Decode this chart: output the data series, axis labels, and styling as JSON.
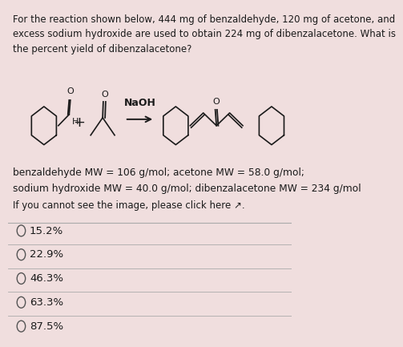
{
  "bg_color": "#f0dede",
  "text_color": "#1a1a1a",
  "question_text": "For the reaction shown below, 444 mg of benzaldehyde, 120 mg of acetone, and\nexcess sodium hydroxide are used to obtain 224 mg of dibenzalacetone. What is\nthe percent yield of dibenzalacetone?",
  "mw_line1": "benzaldehyde MW = 106 g/mol; acetone MW = 58.0 g/mol;",
  "mw_line2": "sodium hydroxide MW = 40.0 g/mol; dibenzalacetone MW = 234 g/mol",
  "link_text": "If you cannot see the image, please click here here ↗.",
  "choices": [
    "15.2%",
    "22.9%",
    "46.3%",
    "63.3%",
    "87.5%"
  ],
  "naoh_label": "NaOH",
  "divider_color": "#aaaaaa",
  "circle_color": "#555555",
  "font_size_question": 8.5,
  "font_size_choices": 9.5,
  "font_size_mw": 8.8,
  "font_size_link": 8.5
}
